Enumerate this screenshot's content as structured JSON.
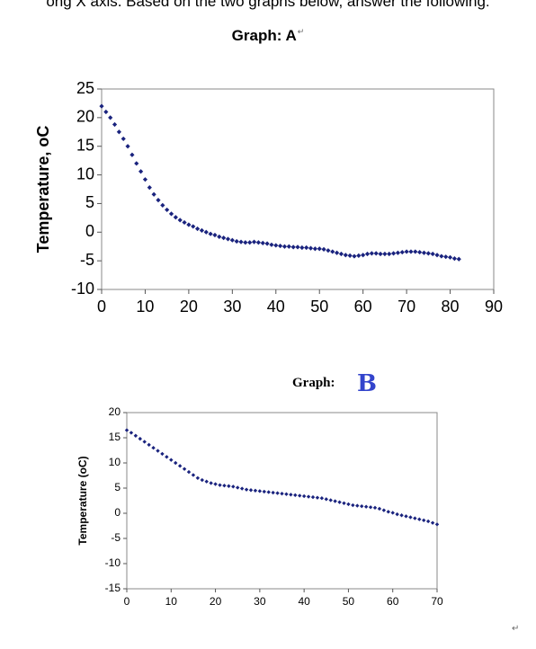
{
  "header_text": "ong X axis. Based on the two graphs below, answer the following:",
  "graph_a_title": "Graph: A",
  "graph_a_title_mark": "↵",
  "graph_b_title": "Graph:",
  "graph_b_letter": "B",
  "paragraph_mark": "↵",
  "chart_data": [
    {
      "type": "scatter",
      "title": "Graph: A",
      "xlabel": "",
      "ylabel": "Temperature, oC",
      "xlim": [
        0,
        90
      ],
      "ylim": [
        -10,
        25
      ],
      "xticks": [
        0,
        10,
        20,
        30,
        40,
        50,
        60,
        70,
        80,
        90
      ],
      "yticks": [
        -10,
        -5,
        0,
        5,
        10,
        15,
        20,
        25
      ],
      "grid": false,
      "marker_color": "#1a237e",
      "x": [
        0,
        1,
        2,
        3,
        4,
        5,
        6,
        7,
        8,
        9,
        10,
        11,
        12,
        13,
        14,
        15,
        16,
        17,
        18,
        19,
        20,
        21,
        22,
        23,
        24,
        25,
        26,
        27,
        28,
        29,
        30,
        31,
        32,
        33,
        34,
        35,
        36,
        37,
        38,
        39,
        40,
        41,
        42,
        43,
        44,
        45,
        46,
        47,
        48,
        49,
        50,
        51,
        52,
        53,
        54,
        55,
        56,
        57,
        58,
        59,
        60,
        61,
        62,
        63,
        64,
        65,
        66,
        67,
        68,
        69,
        70,
        71,
        72,
        73,
        74,
        75,
        76,
        77,
        78,
        79,
        80,
        81,
        82
      ],
      "y": [
        22,
        21,
        20,
        18.8,
        17.5,
        16.3,
        15,
        13.5,
        12,
        10.6,
        9.2,
        7.8,
        6.6,
        5.6,
        4.7,
        3.9,
        3.2,
        2.6,
        2.1,
        1.7,
        1.3,
        1,
        0.6,
        0.3,
        0,
        -0.3,
        -0.5,
        -0.8,
        -1,
        -1.2,
        -1.4,
        -1.6,
        -1.7,
        -1.8,
        -1.8,
        -1.7,
        -1.8,
        -1.9,
        -2,
        -2.2,
        -2.3,
        -2.4,
        -2.5,
        -2.5,
        -2.6,
        -2.6,
        -2.7,
        -2.7,
        -2.8,
        -2.9,
        -2.9,
        -3,
        -3.2,
        -3.4,
        -3.6,
        -3.8,
        -4,
        -4.1,
        -4.2,
        -4.1,
        -4,
        -3.8,
        -3.7,
        -3.7,
        -3.8,
        -3.8,
        -3.8,
        -3.7,
        -3.6,
        -3.5,
        -3.4,
        -3.4,
        -3.4,
        -3.5,
        -3.6,
        -3.7,
        -3.8,
        -4,
        -4.2,
        -4.3,
        -4.4,
        -4.6,
        -4.7
      ]
    },
    {
      "type": "scatter",
      "title": "Graph: B",
      "xlabel": "",
      "ylabel": "Temperature (oC)",
      "xlim": [
        0,
        70
      ],
      "ylim": [
        -15,
        20
      ],
      "xticks": [
        0,
        10,
        20,
        30,
        40,
        50,
        60,
        70
      ],
      "yticks": [
        -15,
        -10,
        -5,
        0,
        5,
        10,
        15,
        20
      ],
      "grid": false,
      "marker_color": "#1a237e",
      "x": [
        0,
        1,
        2,
        3,
        4,
        5,
        6,
        7,
        8,
        9,
        10,
        11,
        12,
        13,
        14,
        15,
        16,
        17,
        18,
        19,
        20,
        21,
        22,
        23,
        24,
        25,
        26,
        27,
        28,
        29,
        30,
        31,
        32,
        33,
        34,
        35,
        36,
        37,
        38,
        39,
        40,
        41,
        42,
        43,
        44,
        45,
        46,
        47,
        48,
        49,
        50,
        51,
        52,
        53,
        54,
        55,
        56,
        57,
        58,
        59,
        60,
        61,
        62,
        63,
        64,
        65,
        66,
        67,
        68,
        69,
        70
      ],
      "y": [
        16.5,
        16,
        15.4,
        14.8,
        14.2,
        13.6,
        13,
        12.4,
        11.8,
        11.2,
        10.6,
        10,
        9.4,
        8.8,
        8.2,
        7.6,
        7,
        6.6,
        6.3,
        6,
        5.8,
        5.6,
        5.5,
        5.4,
        5.3,
        5.1,
        4.9,
        4.7,
        4.6,
        4.5,
        4.4,
        4.3,
        4.2,
        4.1,
        4,
        3.9,
        3.8,
        3.7,
        3.6,
        3.5,
        3.4,
        3.3,
        3.2,
        3.1,
        3,
        2.8,
        2.6,
        2.4,
        2.2,
        2,
        1.8,
        1.6,
        1.5,
        1.4,
        1.3,
        1.2,
        1.1,
        0.9,
        0.6,
        0.3,
        0.1,
        -0.2,
        -0.4,
        -0.6,
        -0.8,
        -1,
        -1.2,
        -1.4,
        -1.6,
        -1.9,
        -2.2
      ]
    }
  ]
}
